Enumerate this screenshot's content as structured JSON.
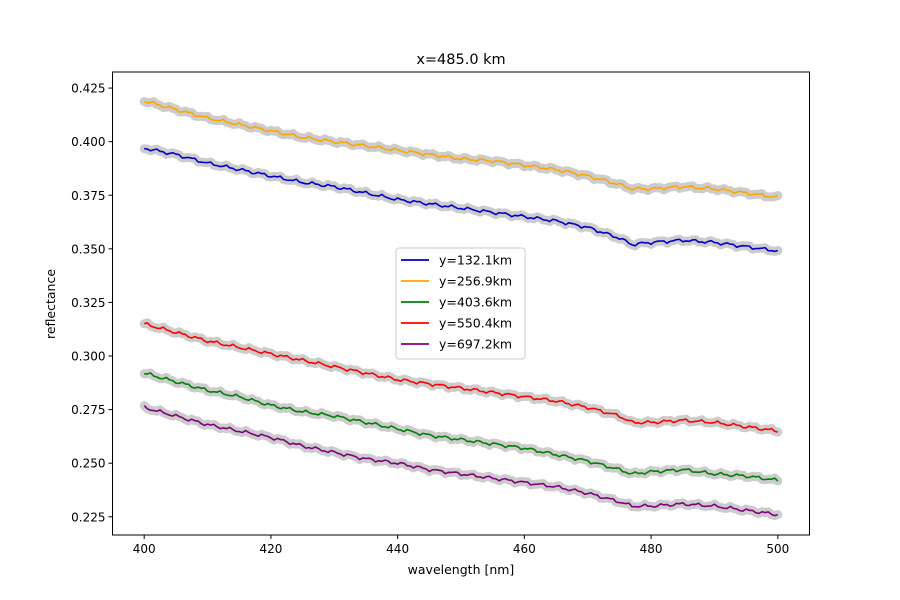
{
  "chart_data": {
    "type": "line",
    "title": "x=485.0 km",
    "xlabel": "wavelength [nm]",
    "ylabel": "reflectance",
    "xlim": [
      395,
      505
    ],
    "ylim": [
      0.2165,
      0.4325
    ],
    "xticks": [
      400,
      420,
      440,
      460,
      480,
      500
    ],
    "xtick_labels": [
      "400",
      "420",
      "440",
      "460",
      "480",
      "500"
    ],
    "yticks": [
      0.225,
      0.25,
      0.275,
      0.3,
      0.325,
      0.35,
      0.375,
      0.4,
      0.425
    ],
    "ytick_labels": [
      "0.225",
      "0.250",
      "0.275",
      "0.300",
      "0.325",
      "0.350",
      "0.375",
      "0.400",
      "0.425"
    ],
    "grid": false,
    "legend_position": "center",
    "band_color": "#cccccc",
    "x": [
      400,
      405,
      410,
      415,
      420,
      425,
      430,
      435,
      440,
      445,
      450,
      455,
      460,
      465,
      470,
      475,
      477,
      480,
      485,
      490,
      495,
      500
    ],
    "series": [
      {
        "name": "y=132.1km",
        "color": "#0000cc",
        "values": [
          0.397,
          0.394,
          0.39,
          0.387,
          0.384,
          0.381,
          0.379,
          0.376,
          0.373,
          0.371,
          0.369,
          0.367,
          0.365,
          0.363,
          0.36,
          0.355,
          0.352,
          0.353,
          0.354,
          0.353,
          0.351,
          0.349
        ]
      },
      {
        "name": "y=256.9km",
        "color": "#ffa500",
        "values": [
          0.419,
          0.415,
          0.411,
          0.408,
          0.405,
          0.402,
          0.4,
          0.398,
          0.396,
          0.394,
          0.392,
          0.391,
          0.389,
          0.387,
          0.384,
          0.38,
          0.378,
          0.378,
          0.379,
          0.378,
          0.376,
          0.374
        ]
      },
      {
        "name": "y=403.6km",
        "color": "#008000",
        "values": [
          0.292,
          0.288,
          0.284,
          0.281,
          0.277,
          0.274,
          0.272,
          0.269,
          0.266,
          0.263,
          0.261,
          0.259,
          0.257,
          0.254,
          0.251,
          0.247,
          0.245,
          0.246,
          0.247,
          0.245,
          0.244,
          0.242
        ]
      },
      {
        "name": "y=550.4km",
        "color": "#ff0000",
        "values": [
          0.315,
          0.311,
          0.307,
          0.304,
          0.301,
          0.298,
          0.295,
          0.292,
          0.289,
          0.287,
          0.285,
          0.283,
          0.281,
          0.279,
          0.276,
          0.272,
          0.269,
          0.269,
          0.27,
          0.269,
          0.267,
          0.265
        ]
      },
      {
        "name": "y=697.2km",
        "color": "#800080",
        "values": [
          0.276,
          0.272,
          0.268,
          0.265,
          0.262,
          0.258,
          0.255,
          0.252,
          0.25,
          0.247,
          0.245,
          0.243,
          0.241,
          0.239,
          0.236,
          0.232,
          0.23,
          0.23,
          0.231,
          0.23,
          0.228,
          0.226
        ]
      }
    ]
  }
}
